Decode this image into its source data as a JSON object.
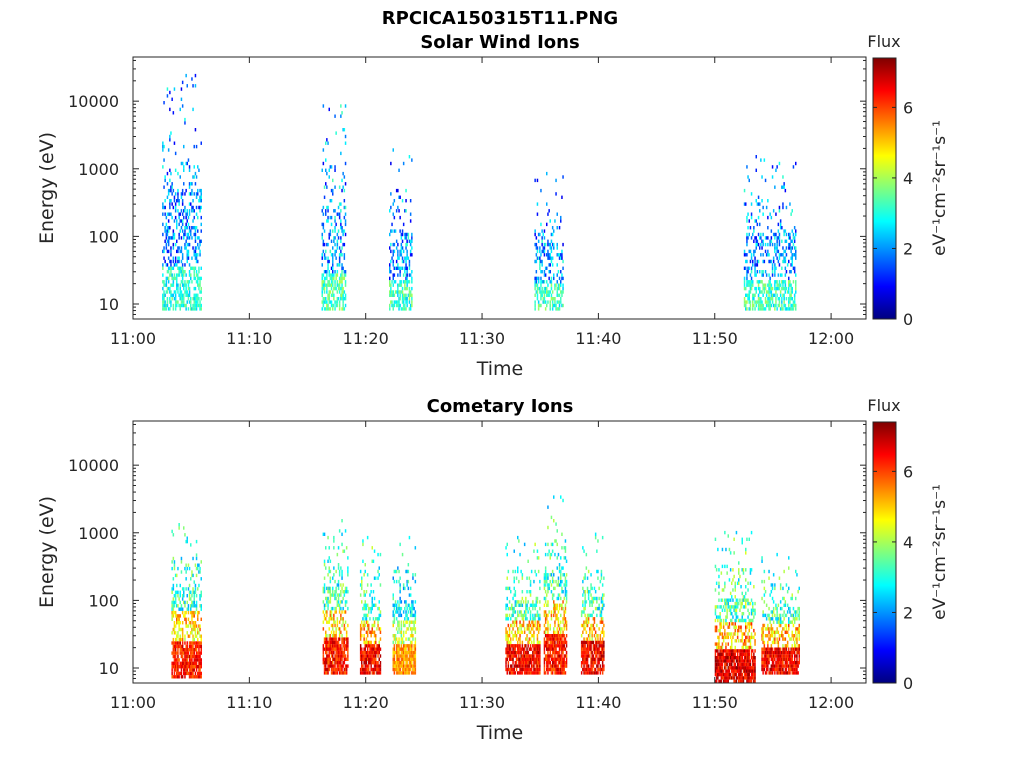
{
  "figure": {
    "filename_title": "RPCICA150315T11.PNG"
  },
  "colorscale": [
    "#00007f",
    "#0000ff",
    "#007fff",
    "#00ffff",
    "#7fff7f",
    "#ffff00",
    "#ff7f00",
    "#ff0000",
    "#7f0000"
  ],
  "chart_data": [
    {
      "type": "heatmap",
      "title": "Solar Wind Ions",
      "xlabel": "Time",
      "ylabel": "Energy (eV)",
      "x_ticks": [
        "11:00",
        "11:10",
        "11:20",
        "11:30",
        "11:40",
        "11:50",
        "12:00"
      ],
      "x_range_minutes_after_1100": [
        0,
        63
      ],
      "y_scale": "log",
      "y_ticks": [
        "10",
        "100",
        "1000",
        "10000"
      ],
      "y_range_eV": [
        6,
        45000
      ],
      "colorbar": {
        "label": "Flux",
        "units": "eV⁻¹cm⁻²sr⁻¹s⁻¹",
        "ticks": [
          "0",
          "2",
          "4",
          "6"
        ],
        "range": [
          0,
          7.4
        ]
      },
      "clusters": [
        {
          "t_start": 2.5,
          "t_end": 5.8,
          "e_low": 8,
          "e_high": 28000,
          "peak_flux": 3.8
        },
        {
          "t_start": 16.2,
          "t_end": 18.3,
          "e_low": 8,
          "e_high": 8000,
          "peak_flux": 4.2
        },
        {
          "t_start": 22.0,
          "t_end": 24.0,
          "e_low": 8,
          "e_high": 2000,
          "peak_flux": 4.0
        },
        {
          "t_start": 34.5,
          "t_end": 37.0,
          "e_low": 8,
          "e_high": 800,
          "peak_flux": 4.0
        },
        {
          "t_start": 52.5,
          "t_end": 57.0,
          "e_low": 8,
          "e_high": 1500,
          "peak_flux": 4.0
        }
      ]
    },
    {
      "type": "heatmap",
      "title": "Cometary Ions",
      "xlabel": "Time",
      "ylabel": "Energy (eV)",
      "x_ticks": [
        "11:00",
        "11:10",
        "11:20",
        "11:30",
        "11:40",
        "11:50",
        "12:00"
      ],
      "x_range_minutes_after_1100": [
        0,
        63
      ],
      "y_scale": "log",
      "y_ticks": [
        "10",
        "100",
        "1000",
        "10000"
      ],
      "y_range_eV": [
        6,
        45000
      ],
      "colorbar": {
        "label": "Flux",
        "units": "eV⁻¹cm⁻²sr⁻¹s⁻¹",
        "ticks": [
          "0",
          "2",
          "4",
          "6"
        ],
        "range": [
          0,
          7.4
        ]
      },
      "clusters": [
        {
          "t_start": 3.3,
          "t_end": 5.8,
          "e_low": 7,
          "e_high": 1700,
          "peak_flux": 7.0
        },
        {
          "t_start": 16.3,
          "t_end": 18.5,
          "e_low": 8,
          "e_high": 1500,
          "peak_flux": 7.0
        },
        {
          "t_start": 19.5,
          "t_end": 21.3,
          "e_low": 8,
          "e_high": 800,
          "peak_flux": 7.2
        },
        {
          "t_start": 22.3,
          "t_end": 24.3,
          "e_low": 8,
          "e_high": 800,
          "peak_flux": 6.0
        },
        {
          "t_start": 32.0,
          "t_end": 35.0,
          "e_low": 8,
          "e_high": 800,
          "peak_flux": 7.2
        },
        {
          "t_start": 35.3,
          "t_end": 37.3,
          "e_low": 8,
          "e_high": 3700,
          "peak_flux": 7.0
        },
        {
          "t_start": 38.5,
          "t_end": 40.5,
          "e_low": 8,
          "e_high": 900,
          "peak_flux": 7.2
        },
        {
          "t_start": 50.0,
          "t_end": 53.5,
          "e_low": 6,
          "e_high": 1000,
          "peak_flux": 7.4
        },
        {
          "t_start": 54.0,
          "t_end": 57.3,
          "e_low": 8,
          "e_high": 500,
          "peak_flux": 7.2
        }
      ]
    }
  ]
}
